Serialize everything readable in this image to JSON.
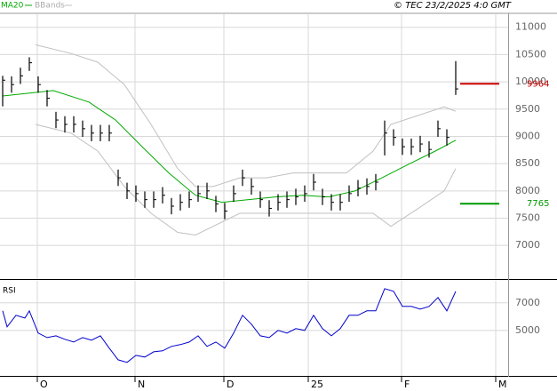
{
  "chart_data": [
    {
      "type": "ohlc",
      "note": "© TEC 23/2/2025 4:0 GMT",
      "x": [
        0,
        1,
        2,
        3,
        4,
        5,
        6,
        7,
        8,
        9,
        10,
        11,
        12,
        13,
        14,
        15,
        16,
        17,
        18,
        19,
        20,
        21,
        22,
        23,
        24,
        25,
        26,
        27,
        28,
        29,
        30,
        31,
        32,
        33,
        34,
        35,
        36,
        37,
        38,
        39,
        40,
        41,
        42,
        43,
        44,
        45,
        46,
        47,
        48,
        49,
        50,
        51
      ],
      "close": [
        10030,
        9950,
        10110,
        10350,
        9950,
        9700,
        9300,
        9220,
        9220,
        9140,
        9060,
        9060,
        9060,
        8240,
        8000,
        7950,
        7840,
        7840,
        7920,
        7720,
        7790,
        7840,
        7950,
        8000,
        7760,
        7630,
        7950,
        8240,
        8080,
        7840,
        7680,
        7790,
        7840,
        7890,
        7950,
        8160,
        7890,
        7790,
        7790,
        7950,
        8050,
        8080,
        8160,
        9060,
        8980,
        8810,
        8810,
        8860,
        8760,
        9140,
        8980,
        9870
      ],
      "high": [
        10110,
        10100,
        10260,
        10450,
        10100,
        9850,
        9450,
        9370,
        9370,
        9290,
        9210,
        9210,
        9210,
        8390,
        8150,
        8100,
        7990,
        7990,
        8070,
        7870,
        7940,
        7990,
        8100,
        8150,
        7910,
        7780,
        8100,
        8390,
        8230,
        7990,
        7830,
        7940,
        7990,
        8040,
        8100,
        8310,
        8040,
        7940,
        7940,
        8100,
        8200,
        8230,
        8310,
        9290,
        9130,
        8960,
        8960,
        9010,
        8910,
        9290,
        9130,
        10380
      ],
      "low": [
        9550,
        9800,
        9960,
        10200,
        9800,
        9550,
        9150,
        9070,
        9070,
        8990,
        8910,
        8910,
        8910,
        8090,
        7850,
        7800,
        7690,
        7690,
        7770,
        7570,
        7640,
        7690,
        7800,
        7850,
        7610,
        7480,
        7800,
        8090,
        7930,
        7690,
        7530,
        7640,
        7690,
        7740,
        7800,
        8010,
        7740,
        7640,
        7640,
        7800,
        7900,
        7930,
        8010,
        8650,
        8830,
        8660,
        8660,
        8710,
        8610,
        8990,
        8830,
        9760
      ],
      "bar_color": "#000000",
      "series": [
        {
          "name": "MA20",
          "color": "#00aa00",
          "x": [
            0,
            5.7,
            9.7,
            12.7,
            15.7,
            18.7,
            21.7,
            24.7,
            27.7,
            30.7,
            33.7,
            36.7,
            39.7,
            42.7,
            45.7,
            48.7,
            51
          ],
          "values": [
            9740,
            9840,
            9630,
            9300,
            8810,
            8330,
            7920,
            7790,
            7840,
            7890,
            7920,
            7890,
            8000,
            8240,
            8490,
            8730,
            8930
          ]
        },
        {
          "name": "BBands",
          "color": "#c0c0c0",
          "x": [
            3.7,
            7.7,
            10.7,
            13.7,
            16.7,
            19.7,
            21.7,
            23.7,
            26.7,
            29.7,
            32.7,
            35.7,
            38.7,
            41.7,
            43.7,
            46.7,
            49.7,
            51
          ],
          "upper": [
            10680,
            10520,
            10360,
            9950,
            9220,
            8410,
            8080,
            8080,
            8240,
            8240,
            8330,
            8330,
            8330,
            8730,
            9220,
            9380,
            9540,
            9460
          ],
          "lower": [
            9220,
            9060,
            8730,
            8080,
            7590,
            7240,
            7190,
            7350,
            7590,
            7590,
            7590,
            7590,
            7590,
            7590,
            7350,
            7670,
            8000,
            8410
          ]
        }
      ],
      "markers": [
        {
          "value": 9964,
          "color": "#cc0000"
        },
        {
          "value": 7765,
          "color": "#009900"
        }
      ],
      "xlim": [
        -0.3,
        56.9
      ],
      "xticks": [
        {
          "value": 3.9,
          "label": "O"
        },
        {
          "value": 14.9,
          "label": "N"
        },
        {
          "value": 24.9,
          "label": "D"
        },
        {
          "value": 34.4,
          "label": "25"
        },
        {
          "value": 44.9,
          "label": "F"
        },
        {
          "value": 55.5,
          "label": "M"
        }
      ],
      "ylim": [
        6400,
        11240
      ],
      "yticks": [
        7000,
        7500,
        8000,
        8500,
        9000,
        9500,
        10000,
        10500,
        11000
      ],
      "grid": true
    },
    {
      "type": "line",
      "title": "RSI",
      "x": [
        0,
        0.5,
        1.5,
        2.5,
        3,
        4,
        5,
        6,
        7,
        8,
        9,
        10,
        11,
        12,
        13,
        14,
        15,
        16,
        17,
        18,
        19,
        20,
        21,
        22,
        23,
        24,
        25,
        26,
        27,
        28,
        29,
        30,
        31,
        32,
        33,
        34,
        35,
        36,
        37,
        38,
        39,
        40,
        41,
        42,
        43,
        44,
        45,
        46,
        47,
        48,
        49,
        50,
        51
      ],
      "series": [
        {
          "name": "RSI",
          "color": "#0000cc",
          "values": [
            6420,
            5260,
            6100,
            5900,
            6420,
            4810,
            4480,
            4610,
            4360,
            4160,
            4480,
            4290,
            4610,
            3710,
            2870,
            2680,
            3190,
            3070,
            3450,
            3520,
            3840,
            3970,
            4160,
            4610,
            3840,
            4160,
            3710,
            4810,
            6100,
            5450,
            4610,
            4480,
            5000,
            4810,
            5130,
            5000,
            6100,
            5130,
            4610,
            5130,
            6100,
            6100,
            6420,
            6420,
            8030,
            7840,
            6740,
            6740,
            6550,
            6740,
            7390,
            6420,
            7840
          ]
        }
      ],
      "xlim": [
        -0.3,
        56.9
      ],
      "ylim": [
        1700,
        8600
      ],
      "yticks": [
        5000,
        7000
      ],
      "grid": true
    }
  ]
}
